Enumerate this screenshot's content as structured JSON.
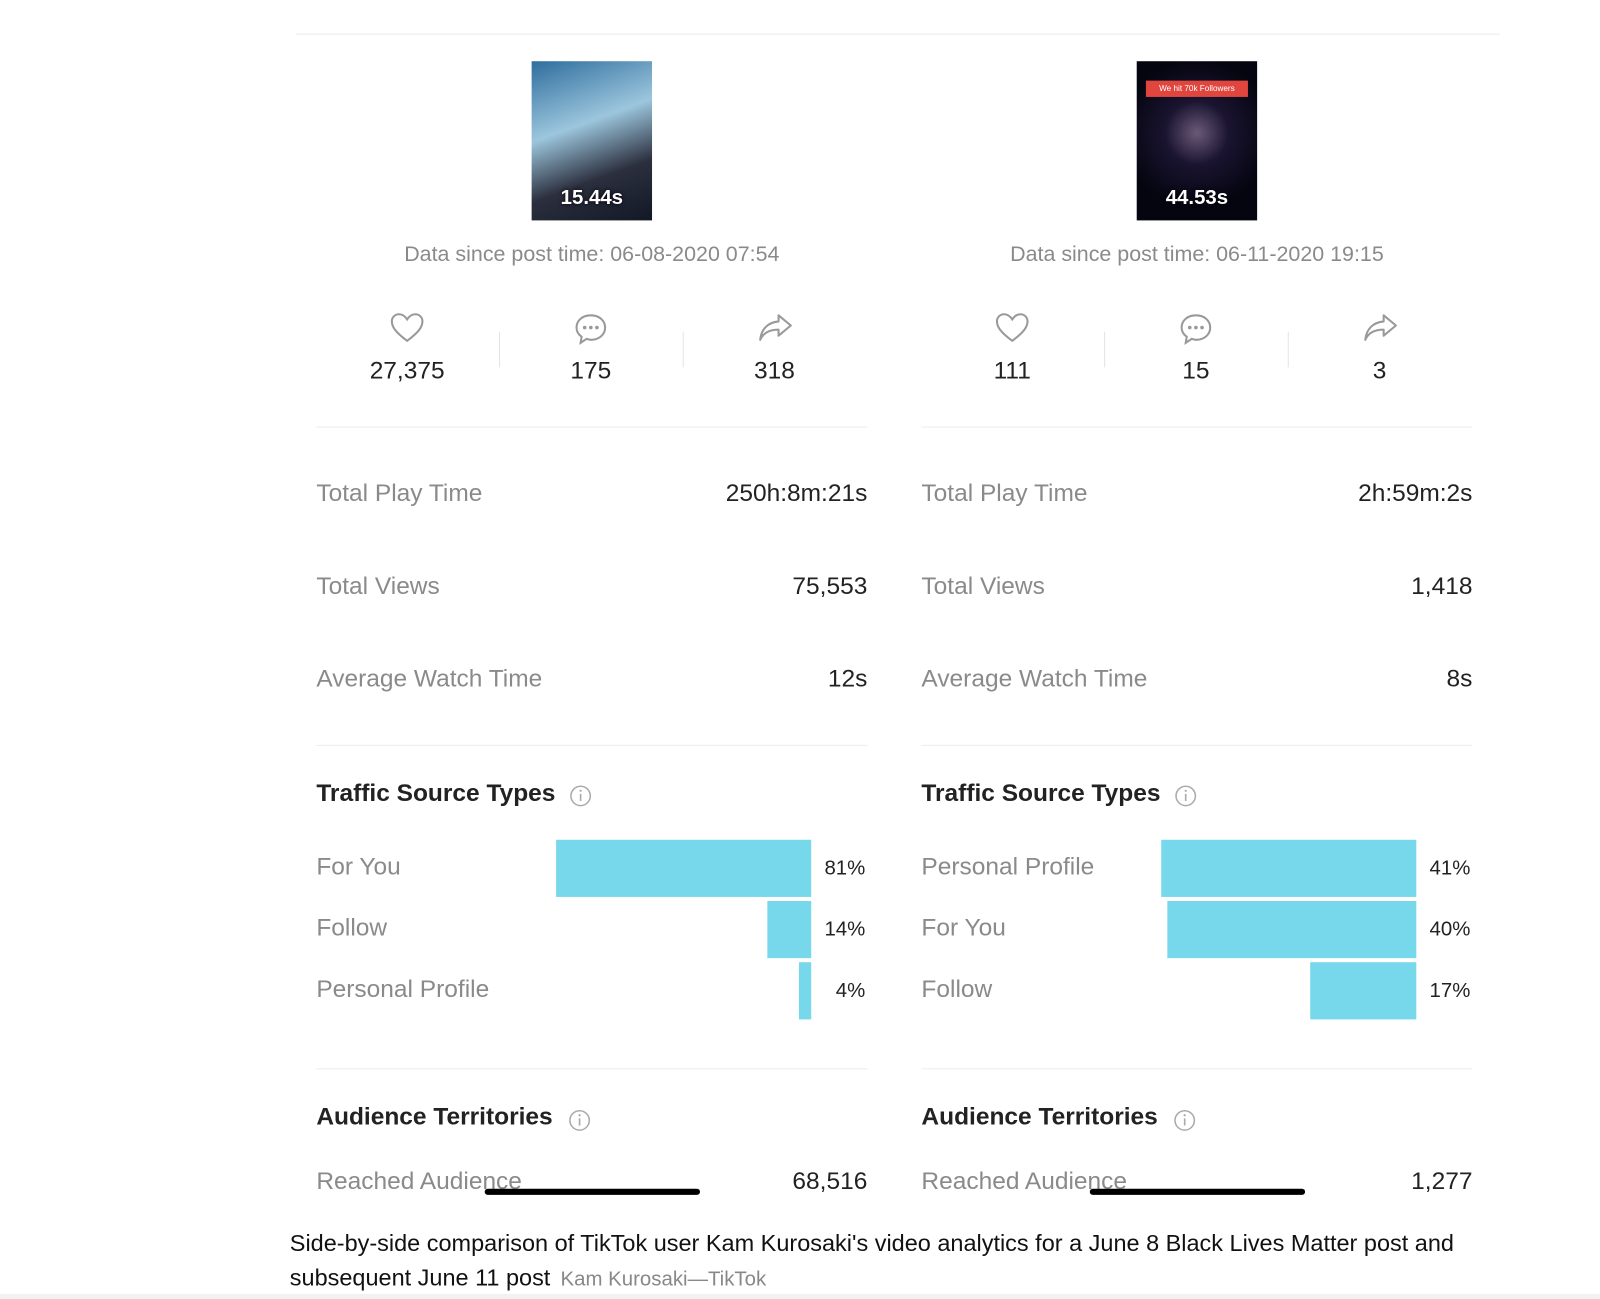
{
  "panels": [
    {
      "thumbnail": {
        "duration": "15.44s"
      },
      "post_time": "Data since post time: 06-08-2020 07:54",
      "likes": "27,375",
      "comments": "175",
      "shares": "318",
      "metrics": [
        {
          "label": "Total Play Time",
          "value": "250h:8m:21s"
        },
        {
          "label": "Total Views",
          "value": "75,553"
        },
        {
          "label": "Average Watch Time",
          "value": "12s"
        }
      ],
      "traffic": {
        "title": "Traffic Source Types",
        "categories": [
          "For You",
          "Follow",
          "Personal Profile"
        ],
        "values": [
          81,
          14,
          4
        ],
        "value_labels": [
          "81%",
          "14%",
          "4%"
        ],
        "color": "#76d8ea"
      },
      "audience": {
        "title": "Audience Territories",
        "label": "Reached Audience",
        "value": "68,516"
      }
    },
    {
      "thumbnail": {
        "banner": "We hit 70k Followers",
        "duration": "44.53s"
      },
      "post_time": "Data since post time: 06-11-2020 19:15",
      "likes": "111",
      "comments": "15",
      "shares": "3",
      "metrics": [
        {
          "label": "Total Play Time",
          "value": "2h:59m:2s"
        },
        {
          "label": "Total Views",
          "value": "1,418"
        },
        {
          "label": "Average Watch Time",
          "value": "8s"
        }
      ],
      "traffic": {
        "title": "Traffic Source Types",
        "categories": [
          "Personal Profile",
          "For You",
          "Follow"
        ],
        "values": [
          41,
          40,
          17
        ],
        "value_labels": [
          "41%",
          "40%",
          "17%"
        ],
        "color": "#76d8ea"
      },
      "audience": {
        "title": "Audience Territories",
        "label": "Reached Audience",
        "value": "1,277"
      }
    }
  ],
  "caption": {
    "text": "Side-by-side comparison of TikTok user Kam Kurosaki's video analytics for a June 8 Black Lives Matter post and subsequent June 11 post",
    "credit": "Kam Kurosaki—TikTok"
  }
}
